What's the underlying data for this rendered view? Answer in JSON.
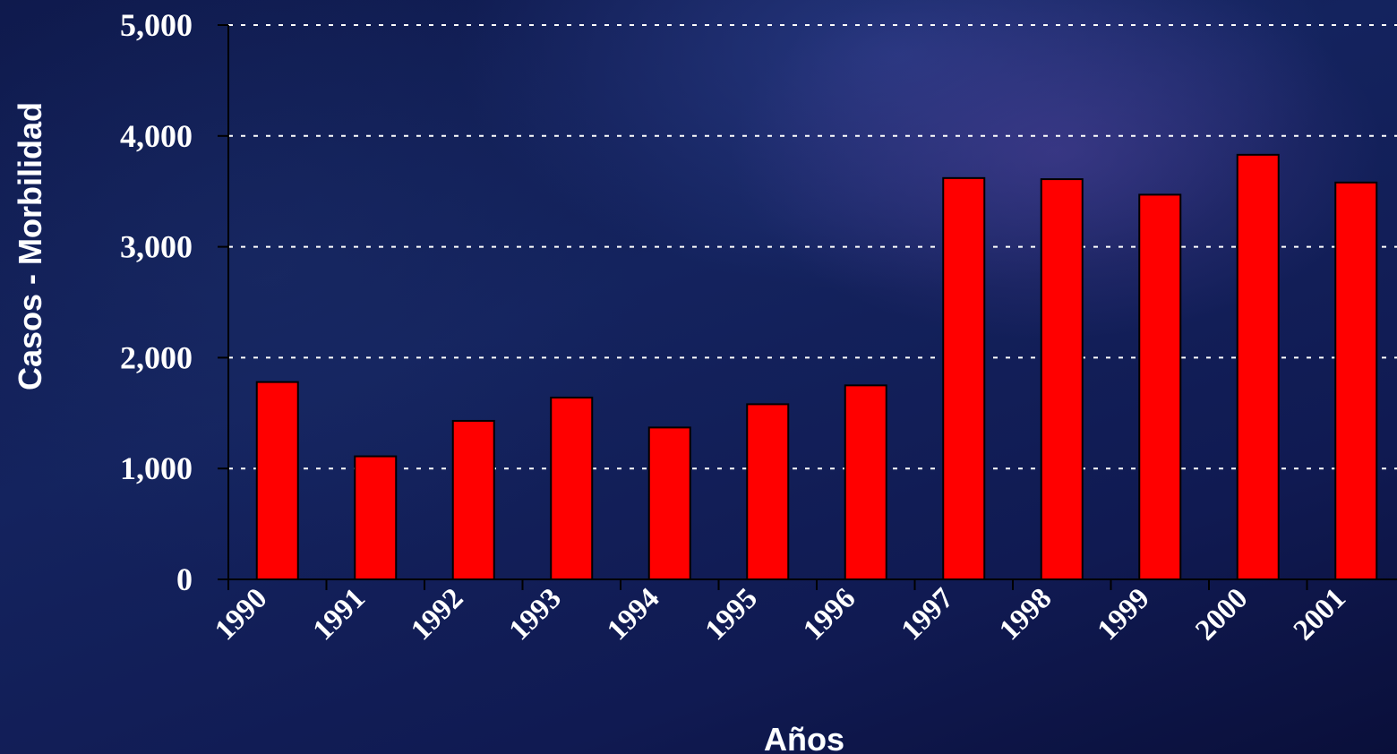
{
  "chart_data": {
    "type": "bar",
    "categories": [
      "1990",
      "1991",
      "1992",
      "1993",
      "1994",
      "1995",
      "1996",
      "1997",
      "1998",
      "1999",
      "2000",
      "2001"
    ],
    "values": [
      1780,
      1110,
      1430,
      1640,
      1370,
      1580,
      1750,
      3620,
      3610,
      3470,
      3830,
      3580
    ],
    "xlabel": "Años",
    "ylabel": "Casos - Morbilidad",
    "ylim": [
      0,
      5000
    ],
    "yticks": [
      "0",
      "1,000",
      "2,000",
      "3,000",
      "4,000",
      "5,000"
    ],
    "ytick_values": [
      0,
      1000,
      2000,
      3000,
      4000,
      5000
    ],
    "grid": true,
    "legend": "none",
    "colors": {
      "bar": "#ff0000",
      "bar_edge": "#000000",
      "grid": "#ffffff",
      "axis": "#000000",
      "text": "#ffffff"
    }
  }
}
